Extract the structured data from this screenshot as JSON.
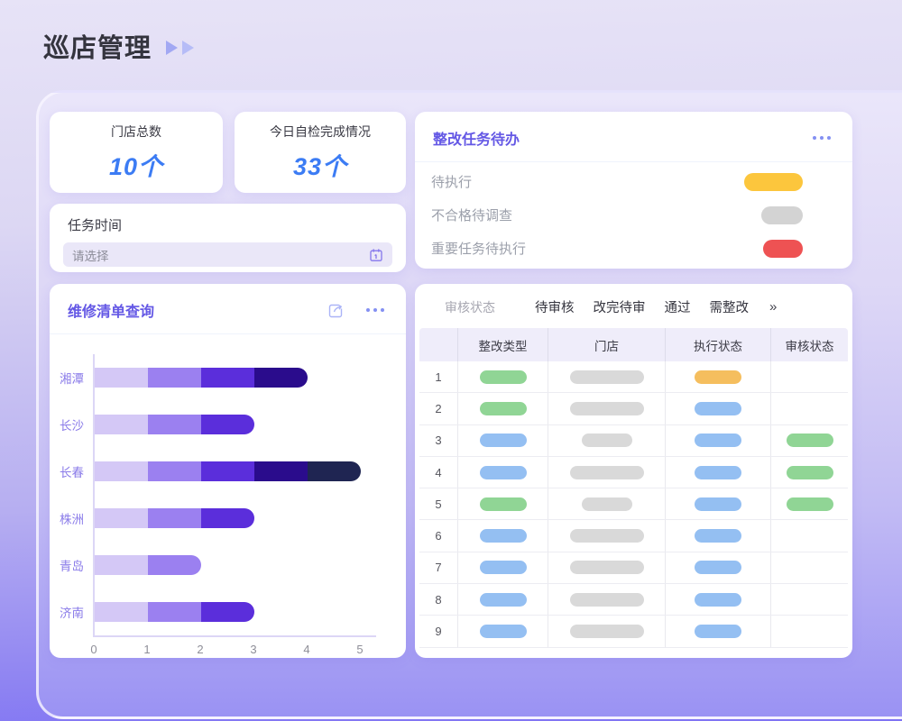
{
  "page_title": "巡店管理",
  "stats": [
    {
      "label": "门店总数",
      "value": "10个"
    },
    {
      "label": "今日自检完成情况",
      "value": "33个"
    }
  ],
  "task_time": {
    "label": "任务时间",
    "placeholder": "请选择",
    "icon": "calendar-icon"
  },
  "todo_card": {
    "title": "整改任务待办",
    "menu_icon": "ellipsis-icon",
    "items": [
      {
        "label": "待执行",
        "color": "#FCC63D",
        "pill_width": 65
      },
      {
        "label": "不合格待调查",
        "color": "#D3D3D3",
        "pill_width": 46
      },
      {
        "label": "重要任务待执行",
        "color": "#EE5253",
        "pill_width": 44
      }
    ]
  },
  "repair_card": {
    "title": "维修清单查询",
    "export_icon": "share-icon",
    "menu_icon": "ellipsis-icon"
  },
  "chart_data": {
    "type": "bar",
    "orientation": "horizontal",
    "stacked": true,
    "categories": [
      "湘潭",
      "长沙",
      "长春",
      "株洲",
      "青岛",
      "济南"
    ],
    "series": [
      {
        "name": "segment-1",
        "color": "#D4C8F6",
        "values": [
          1,
          1,
          1,
          1,
          1,
          1
        ]
      },
      {
        "name": "segment-2",
        "color": "#9B80F0",
        "values": [
          1,
          1,
          1,
          1,
          1,
          1
        ]
      },
      {
        "name": "segment-3",
        "color": "#5B2EDB",
        "values": [
          1,
          1,
          1,
          1,
          0,
          1
        ]
      },
      {
        "name": "segment-4",
        "color": "#2A0C8C",
        "values": [
          1,
          0,
          1,
          0,
          0,
          0
        ]
      },
      {
        "name": "segment-5",
        "color": "#1F2552",
        "values": [
          0,
          0,
          1,
          0,
          0,
          0
        ]
      }
    ],
    "totals": [
      4,
      3,
      5,
      3,
      2,
      3
    ],
    "xlim": [
      0,
      5
    ],
    "x_ticks": [
      0,
      1,
      2,
      3,
      4,
      5
    ],
    "grid": false,
    "legend": "none"
  },
  "table_card": {
    "filter_label": "审核状态",
    "filter_options": [
      "待审核",
      "改完待审",
      "通过",
      "需整改"
    ],
    "more_label": "»",
    "columns": [
      "",
      "整改类型",
      "门店",
      "执行状态",
      "审核状态"
    ],
    "pill_colors": {
      "green": "#90D595",
      "blue": "#94BFF2",
      "orange": "#F5BE5E",
      "gray": "#D9D9D9"
    },
    "rows": [
      {
        "num": "1",
        "rectify_type": "green",
        "store": "gray-wide",
        "exec_status": "orange",
        "review_status": null
      },
      {
        "num": "2",
        "rectify_type": "green",
        "store": "gray-wide",
        "exec_status": "blue",
        "review_status": null
      },
      {
        "num": "3",
        "rectify_type": "blue",
        "store": "gray-narrow",
        "exec_status": "blue",
        "review_status": "green"
      },
      {
        "num": "4",
        "rectify_type": "blue",
        "store": "gray-wide",
        "exec_status": "blue",
        "review_status": "green"
      },
      {
        "num": "5",
        "rectify_type": "green",
        "store": "gray-narrow",
        "exec_status": "blue",
        "review_status": "green"
      },
      {
        "num": "6",
        "rectify_type": "blue",
        "store": "gray-wide",
        "exec_status": "blue",
        "review_status": null
      },
      {
        "num": "7",
        "rectify_type": "blue",
        "store": "gray-wide",
        "exec_status": "blue",
        "review_status": null
      },
      {
        "num": "8",
        "rectify_type": "blue",
        "store": "gray-wide",
        "exec_status": "blue",
        "review_status": null
      },
      {
        "num": "9",
        "rectify_type": "blue",
        "store": "gray-wide",
        "exec_status": "blue",
        "review_status": null
      }
    ]
  },
  "colors": {
    "accent_purple": "#6458E5",
    "stat_blue": "#3C7CF4",
    "page_bg_top": "#E7E3F7",
    "page_bg_bottom": "#7F73F3"
  }
}
